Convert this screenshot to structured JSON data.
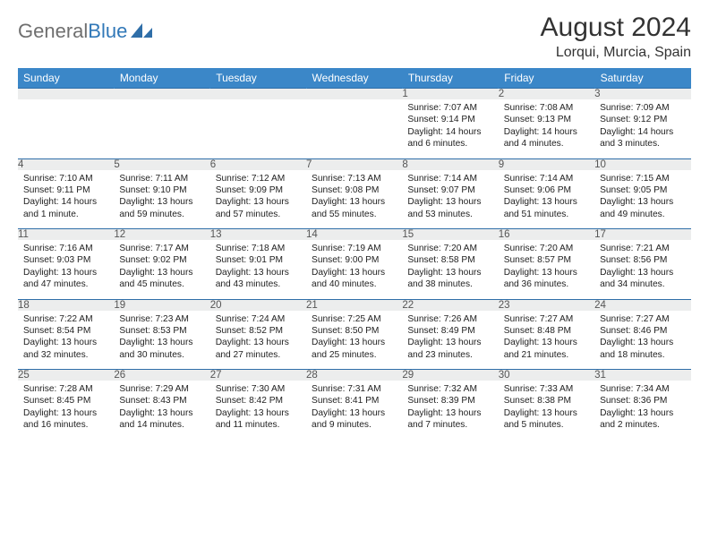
{
  "logo": {
    "part1": "General",
    "part2": "Blue"
  },
  "title": "August 2024",
  "location": "Lorqui, Murcia, Spain",
  "colors": {
    "header_bg": "#3b87c8",
    "header_text": "#ffffff",
    "daynum_bg": "#eceded",
    "border": "#2f6ea8",
    "logo_gray": "#6f6f6f",
    "logo_blue": "#3178b8"
  },
  "day_headers": [
    "Sunday",
    "Monday",
    "Tuesday",
    "Wednesday",
    "Thursday",
    "Friday",
    "Saturday"
  ],
  "weeks": [
    [
      {
        "num": "",
        "lines": []
      },
      {
        "num": "",
        "lines": []
      },
      {
        "num": "",
        "lines": []
      },
      {
        "num": "",
        "lines": []
      },
      {
        "num": "1",
        "lines": [
          "Sunrise: 7:07 AM",
          "Sunset: 9:14 PM",
          "Daylight: 14 hours",
          "and 6 minutes."
        ]
      },
      {
        "num": "2",
        "lines": [
          "Sunrise: 7:08 AM",
          "Sunset: 9:13 PM",
          "Daylight: 14 hours",
          "and 4 minutes."
        ]
      },
      {
        "num": "3",
        "lines": [
          "Sunrise: 7:09 AM",
          "Sunset: 9:12 PM",
          "Daylight: 14 hours",
          "and 3 minutes."
        ]
      }
    ],
    [
      {
        "num": "4",
        "lines": [
          "Sunrise: 7:10 AM",
          "Sunset: 9:11 PM",
          "Daylight: 14 hours",
          "and 1 minute."
        ]
      },
      {
        "num": "5",
        "lines": [
          "Sunrise: 7:11 AM",
          "Sunset: 9:10 PM",
          "Daylight: 13 hours",
          "and 59 minutes."
        ]
      },
      {
        "num": "6",
        "lines": [
          "Sunrise: 7:12 AM",
          "Sunset: 9:09 PM",
          "Daylight: 13 hours",
          "and 57 minutes."
        ]
      },
      {
        "num": "7",
        "lines": [
          "Sunrise: 7:13 AM",
          "Sunset: 9:08 PM",
          "Daylight: 13 hours",
          "and 55 minutes."
        ]
      },
      {
        "num": "8",
        "lines": [
          "Sunrise: 7:14 AM",
          "Sunset: 9:07 PM",
          "Daylight: 13 hours",
          "and 53 minutes."
        ]
      },
      {
        "num": "9",
        "lines": [
          "Sunrise: 7:14 AM",
          "Sunset: 9:06 PM",
          "Daylight: 13 hours",
          "and 51 minutes."
        ]
      },
      {
        "num": "10",
        "lines": [
          "Sunrise: 7:15 AM",
          "Sunset: 9:05 PM",
          "Daylight: 13 hours",
          "and 49 minutes."
        ]
      }
    ],
    [
      {
        "num": "11",
        "lines": [
          "Sunrise: 7:16 AM",
          "Sunset: 9:03 PM",
          "Daylight: 13 hours",
          "and 47 minutes."
        ]
      },
      {
        "num": "12",
        "lines": [
          "Sunrise: 7:17 AM",
          "Sunset: 9:02 PM",
          "Daylight: 13 hours",
          "and 45 minutes."
        ]
      },
      {
        "num": "13",
        "lines": [
          "Sunrise: 7:18 AM",
          "Sunset: 9:01 PM",
          "Daylight: 13 hours",
          "and 43 minutes."
        ]
      },
      {
        "num": "14",
        "lines": [
          "Sunrise: 7:19 AM",
          "Sunset: 9:00 PM",
          "Daylight: 13 hours",
          "and 40 minutes."
        ]
      },
      {
        "num": "15",
        "lines": [
          "Sunrise: 7:20 AM",
          "Sunset: 8:58 PM",
          "Daylight: 13 hours",
          "and 38 minutes."
        ]
      },
      {
        "num": "16",
        "lines": [
          "Sunrise: 7:20 AM",
          "Sunset: 8:57 PM",
          "Daylight: 13 hours",
          "and 36 minutes."
        ]
      },
      {
        "num": "17",
        "lines": [
          "Sunrise: 7:21 AM",
          "Sunset: 8:56 PM",
          "Daylight: 13 hours",
          "and 34 minutes."
        ]
      }
    ],
    [
      {
        "num": "18",
        "lines": [
          "Sunrise: 7:22 AM",
          "Sunset: 8:54 PM",
          "Daylight: 13 hours",
          "and 32 minutes."
        ]
      },
      {
        "num": "19",
        "lines": [
          "Sunrise: 7:23 AM",
          "Sunset: 8:53 PM",
          "Daylight: 13 hours",
          "and 30 minutes."
        ]
      },
      {
        "num": "20",
        "lines": [
          "Sunrise: 7:24 AM",
          "Sunset: 8:52 PM",
          "Daylight: 13 hours",
          "and 27 minutes."
        ]
      },
      {
        "num": "21",
        "lines": [
          "Sunrise: 7:25 AM",
          "Sunset: 8:50 PM",
          "Daylight: 13 hours",
          "and 25 minutes."
        ]
      },
      {
        "num": "22",
        "lines": [
          "Sunrise: 7:26 AM",
          "Sunset: 8:49 PM",
          "Daylight: 13 hours",
          "and 23 minutes."
        ]
      },
      {
        "num": "23",
        "lines": [
          "Sunrise: 7:27 AM",
          "Sunset: 8:48 PM",
          "Daylight: 13 hours",
          "and 21 minutes."
        ]
      },
      {
        "num": "24",
        "lines": [
          "Sunrise: 7:27 AM",
          "Sunset: 8:46 PM",
          "Daylight: 13 hours",
          "and 18 minutes."
        ]
      }
    ],
    [
      {
        "num": "25",
        "lines": [
          "Sunrise: 7:28 AM",
          "Sunset: 8:45 PM",
          "Daylight: 13 hours",
          "and 16 minutes."
        ]
      },
      {
        "num": "26",
        "lines": [
          "Sunrise: 7:29 AM",
          "Sunset: 8:43 PM",
          "Daylight: 13 hours",
          "and 14 minutes."
        ]
      },
      {
        "num": "27",
        "lines": [
          "Sunrise: 7:30 AM",
          "Sunset: 8:42 PM",
          "Daylight: 13 hours",
          "and 11 minutes."
        ]
      },
      {
        "num": "28",
        "lines": [
          "Sunrise: 7:31 AM",
          "Sunset: 8:41 PM",
          "Daylight: 13 hours",
          "and 9 minutes."
        ]
      },
      {
        "num": "29",
        "lines": [
          "Sunrise: 7:32 AM",
          "Sunset: 8:39 PM",
          "Daylight: 13 hours",
          "and 7 minutes."
        ]
      },
      {
        "num": "30",
        "lines": [
          "Sunrise: 7:33 AM",
          "Sunset: 8:38 PM",
          "Daylight: 13 hours",
          "and 5 minutes."
        ]
      },
      {
        "num": "31",
        "lines": [
          "Sunrise: 7:34 AM",
          "Sunset: 8:36 PM",
          "Daylight: 13 hours",
          "and 2 minutes."
        ]
      }
    ]
  ]
}
